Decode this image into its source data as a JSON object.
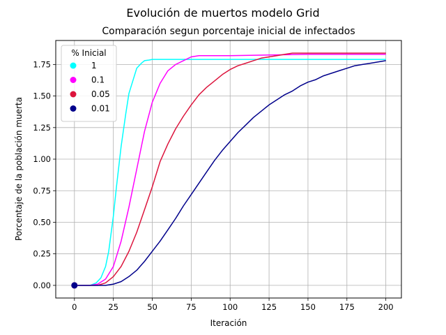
{
  "chart_data": {
    "type": "line",
    "title": "Evolución de muertos modelo Grid",
    "subtitle": "Comparación segun porcentaje inicial de infectados",
    "xlabel": "Iteración",
    "ylabel": "Porcentaje de la población muerta",
    "xlim": [
      -12,
      210
    ],
    "ylim": [
      -0.1,
      1.94
    ],
    "xticks": [
      0,
      25,
      50,
      75,
      100,
      125,
      150,
      175,
      200
    ],
    "yticks": [
      0.0,
      0.25,
      0.5,
      0.75,
      1.0,
      1.25,
      1.5,
      1.75
    ],
    "xtick_labels": [
      "0",
      "25",
      "50",
      "75",
      "100",
      "125",
      "150",
      "175",
      "200"
    ],
    "ytick_labels": [
      "0.00",
      "0.25",
      "0.50",
      "0.75",
      "1.00",
      "1.25",
      "1.50",
      "1.75"
    ],
    "grid": true,
    "legend": {
      "title": "% Inicial",
      "position": "top-left"
    },
    "series": [
      {
        "name": "1",
        "color": "#00ffff",
        "x": [
          0,
          10,
          14,
          17,
          20,
          22,
          25,
          27,
          30,
          33,
          35,
          38,
          40,
          43,
          45,
          48,
          50,
          55,
          60,
          70,
          80,
          100,
          150,
          200
        ],
        "y": [
          0.0,
          0.0,
          0.02,
          0.06,
          0.15,
          0.27,
          0.55,
          0.78,
          1.1,
          1.36,
          1.52,
          1.64,
          1.72,
          1.76,
          1.78,
          1.785,
          1.79,
          1.79,
          1.79,
          1.79,
          1.79,
          1.79,
          1.79,
          1.79
        ]
      },
      {
        "name": "0.1",
        "color": "#ff00ff",
        "x": [
          0,
          10,
          15,
          20,
          25,
          30,
          35,
          40,
          43,
          45,
          50,
          55,
          60,
          65,
          70,
          75,
          80,
          85,
          100,
          150,
          200
        ],
        "y": [
          0.0,
          0.0,
          0.01,
          0.05,
          0.15,
          0.35,
          0.62,
          0.92,
          1.1,
          1.22,
          1.45,
          1.6,
          1.7,
          1.75,
          1.78,
          1.81,
          1.82,
          1.82,
          1.82,
          1.83,
          1.83
        ]
      },
      {
        "name": "0.05",
        "color": "#dc143c",
        "x": [
          0,
          10,
          15,
          20,
          25,
          30,
          35,
          40,
          45,
          50,
          55,
          60,
          65,
          70,
          75,
          80,
          85,
          90,
          95,
          100,
          105,
          110,
          115,
          120,
          125,
          130,
          135,
          140,
          150,
          175,
          200
        ],
        "y": [
          0.0,
          0.0,
          0.0,
          0.02,
          0.07,
          0.15,
          0.27,
          0.42,
          0.6,
          0.78,
          0.98,
          1.12,
          1.24,
          1.34,
          1.43,
          1.51,
          1.57,
          1.62,
          1.67,
          1.71,
          1.74,
          1.76,
          1.78,
          1.8,
          1.81,
          1.82,
          1.83,
          1.84,
          1.84,
          1.84,
          1.84
        ]
      },
      {
        "name": "0.01",
        "color": "#00008b",
        "x": [
          0,
          10,
          20,
          25,
          30,
          35,
          40,
          45,
          50,
          55,
          60,
          65,
          70,
          75,
          80,
          85,
          90,
          95,
          100,
          105,
          110,
          115,
          120,
          125,
          130,
          135,
          140,
          145,
          150,
          155,
          160,
          165,
          170,
          175,
          180,
          185,
          190,
          195,
          200
        ],
        "y": [
          0.0,
          0.0,
          0.0,
          0.01,
          0.03,
          0.07,
          0.12,
          0.19,
          0.27,
          0.35,
          0.44,
          0.53,
          0.63,
          0.72,
          0.81,
          0.9,
          0.99,
          1.07,
          1.14,
          1.21,
          1.27,
          1.33,
          1.38,
          1.43,
          1.47,
          1.51,
          1.54,
          1.58,
          1.61,
          1.63,
          1.66,
          1.68,
          1.7,
          1.72,
          1.74,
          1.75,
          1.76,
          1.77,
          1.78
        ]
      }
    ]
  }
}
